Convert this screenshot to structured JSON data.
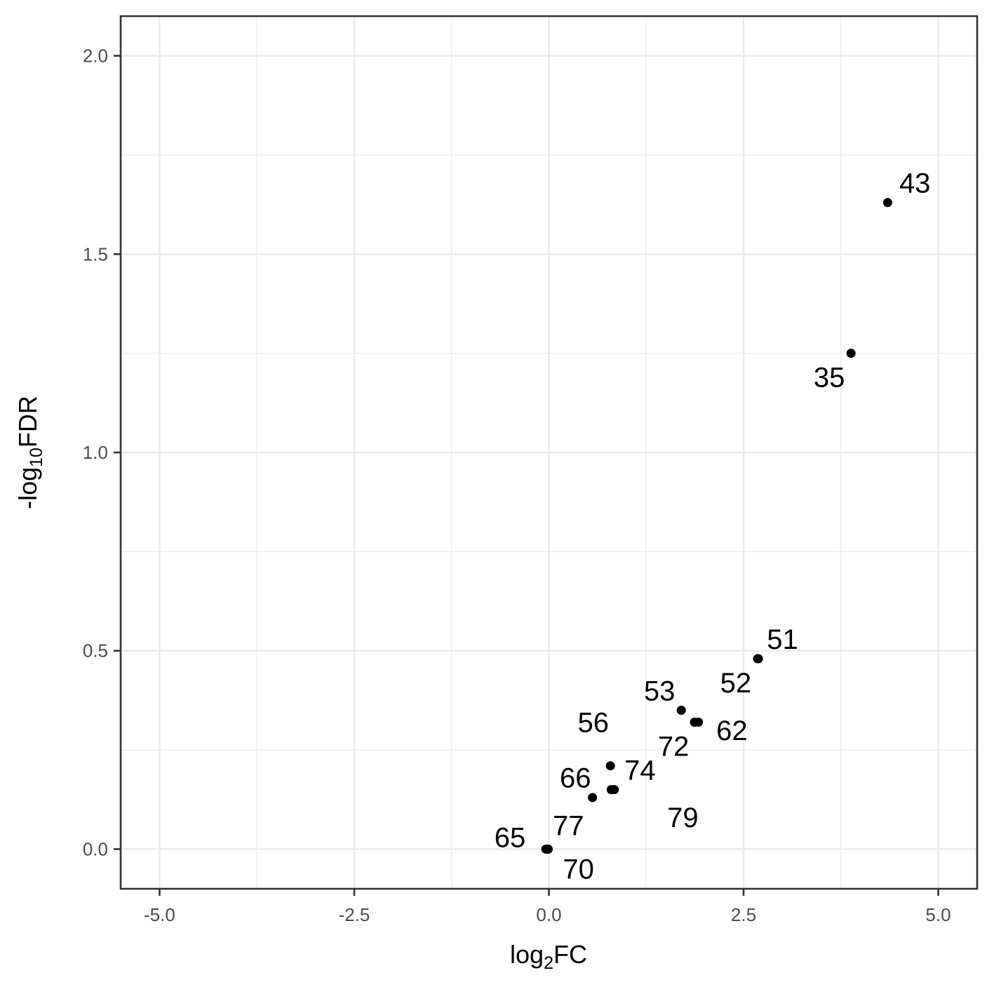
{
  "chart_data": {
    "type": "scatter",
    "title": "",
    "xlabel": {
      "base": "log",
      "sub": "2",
      "tail": "FC"
    },
    "ylabel": {
      "base": "-log",
      "sub": "10",
      "tail": "FDR"
    },
    "xlim": [
      -5.5,
      5.5
    ],
    "ylim": [
      -0.1,
      2.1
    ],
    "x_ticks": [
      -5.0,
      -2.5,
      0.0,
      2.5,
      5.0
    ],
    "x_tick_labels": [
      "-5.0",
      "-2.5",
      "0.0",
      "2.5",
      "5.0"
    ],
    "y_ticks": [
      0.0,
      0.5,
      1.0,
      1.5,
      2.0
    ],
    "y_tick_labels": [
      "0.0",
      "0.5",
      "1.0",
      "1.5",
      "2.0"
    ],
    "x_minor": [
      -3.75,
      -1.25,
      1.25,
      3.75
    ],
    "y_minor": [
      0.25,
      0.75,
      1.25,
      1.75
    ],
    "grid": true,
    "point_color": "#000000",
    "points": [
      {
        "label": "43",
        "x": 4.35,
        "y": 1.63,
        "label_x": 4.7,
        "label_y": 1.68
      },
      {
        "label": "35",
        "x": 3.88,
        "y": 1.25,
        "label_x": 3.6,
        "label_y": 1.19
      },
      {
        "label": "51",
        "x": 2.69,
        "y": 0.48,
        "label_x": 3.0,
        "label_y": 0.53
      },
      {
        "label": "52",
        "x": 2.68,
        "y": 0.48,
        "label_x": 2.4,
        "label_y": 0.42
      },
      {
        "label": "53",
        "x": 1.7,
        "y": 0.35,
        "label_x": 1.42,
        "label_y": 0.4
      },
      {
        "label": "62",
        "x": 1.92,
        "y": 0.32,
        "label_x": 2.35,
        "label_y": 0.3
      },
      {
        "label": "72",
        "x": 1.87,
        "y": 0.32,
        "label_x": 1.6,
        "label_y": 0.26
      },
      {
        "label": "56",
        "x": 0.79,
        "y": 0.21,
        "label_x": 0.57,
        "label_y": 0.32
      },
      {
        "label": "74",
        "x": 0.84,
        "y": 0.15,
        "label_x": 1.17,
        "label_y": 0.2
      },
      {
        "label": "66",
        "x": 0.56,
        "y": 0.13,
        "label_x": 0.34,
        "label_y": 0.18
      },
      {
        "label": "79",
        "x": 0.8,
        "y": 0.15,
        "label_x": 1.72,
        "label_y": 0.08
      },
      {
        "label": "77",
        "x": -0.01,
        "y": 0.0,
        "label_x": 0.25,
        "label_y": 0.06
      },
      {
        "label": "65",
        "x": -0.04,
        "y": 0.0,
        "label_x": -0.5,
        "label_y": 0.03
      },
      {
        "label": "70",
        "x": -0.01,
        "y": 0.0,
        "label_x": 0.38,
        "label_y": -0.05
      }
    ]
  }
}
